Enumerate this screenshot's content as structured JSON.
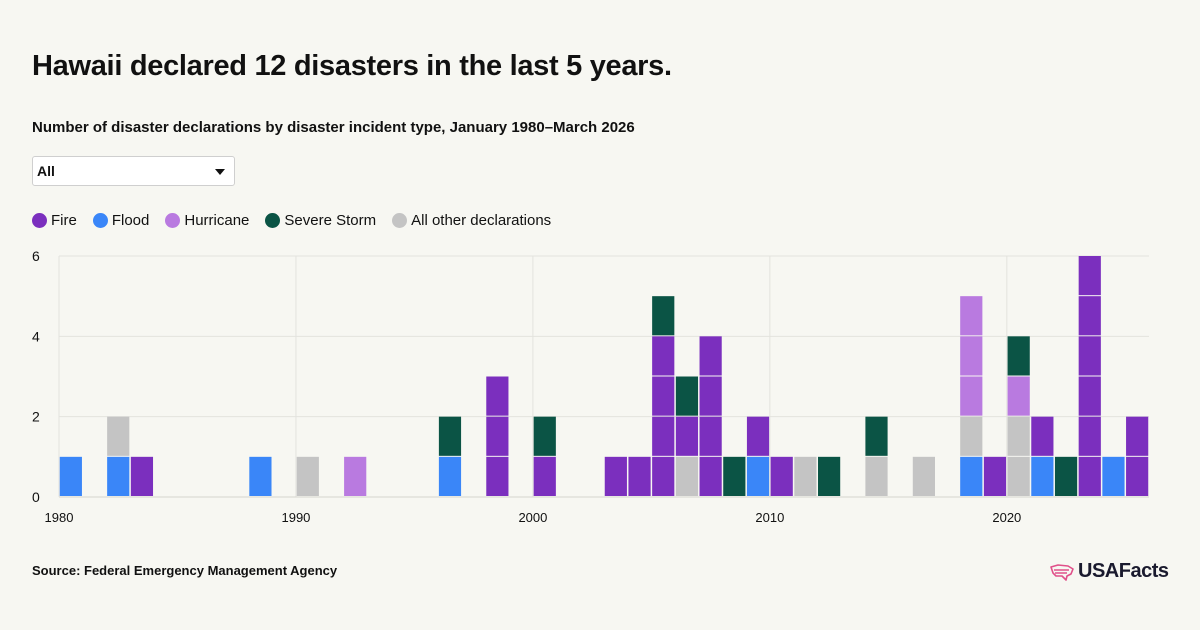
{
  "header": {
    "title": "Hawaii declared 12 disasters in the last 5 years.",
    "subtitle": "Number of disaster declarations by disaster incident type, January 1980–March 2026"
  },
  "filter": {
    "selected": "All"
  },
  "legend": {
    "items": [
      {
        "label": "Fire",
        "color": "#7b2fbe"
      },
      {
        "label": "Flood",
        "color": "#3a86f8"
      },
      {
        "label": "Hurricane",
        "color": "#b97ae0"
      },
      {
        "label": "Severe Storm",
        "color": "#0b5445"
      },
      {
        "label": "All other declarations",
        "color": "#c4c4c4"
      }
    ]
  },
  "footer": {
    "source": "Source: Federal Emergency Management Agency",
    "logo_text": "USAFacts",
    "logo_icon": "us-map-icon"
  },
  "chart_data": {
    "type": "bar",
    "stacked": true,
    "x_range": [
      1980,
      2025
    ],
    "x_ticks": [
      "1980",
      "1990",
      "2000",
      "2010",
      "2020"
    ],
    "ylim": [
      0,
      6
    ],
    "y_ticks": [
      "0",
      "2",
      "4",
      "6"
    ],
    "grid": true,
    "stack_order": [
      "Flood",
      "All other declarations",
      "Fire",
      "Hurricane",
      "Severe Storm"
    ],
    "colors": {
      "Fire": "#7b2fbe",
      "Flood": "#3a86f8",
      "Hurricane": "#b97ae0",
      "Severe Storm": "#0b5445",
      "All other declarations": "#c4c4c4"
    },
    "years": [
      {
        "year": 1980,
        "Flood": 1
      },
      {
        "year": 1982,
        "Flood": 1,
        "All other declarations": 1
      },
      {
        "year": 1983,
        "Fire": 1
      },
      {
        "year": 1988,
        "Flood": 1
      },
      {
        "year": 1990,
        "All other declarations": 1
      },
      {
        "year": 1992,
        "Hurricane": 1
      },
      {
        "year": 1996,
        "Flood": 1,
        "Severe Storm": 1
      },
      {
        "year": 1998,
        "Fire": 3
      },
      {
        "year": 2000,
        "Fire": 1,
        "Severe Storm": 1
      },
      {
        "year": 2003,
        "Fire": 1
      },
      {
        "year": 2004,
        "Fire": 1
      },
      {
        "year": 2005,
        "Fire": 4,
        "Severe Storm": 1
      },
      {
        "year": 2006,
        "All other declarations": 1,
        "Fire": 1,
        "Severe Storm": 1
      },
      {
        "year": 2007,
        "Fire": 4
      },
      {
        "year": 2008,
        "Severe Storm": 1
      },
      {
        "year": 2009,
        "Flood": 1,
        "Fire": 1
      },
      {
        "year": 2010,
        "Fire": 1
      },
      {
        "year": 2011,
        "All other declarations": 1
      },
      {
        "year": 2012,
        "Severe Storm": 1
      },
      {
        "year": 2014,
        "All other declarations": 1,
        "Severe Storm": 1
      },
      {
        "year": 2016,
        "All other declarations": 1
      },
      {
        "year": 2018,
        "Flood": 1,
        "All other declarations": 1,
        "Hurricane": 3
      },
      {
        "year": 2019,
        "Fire": 1
      },
      {
        "year": 2020,
        "All other declarations": 2,
        "Hurricane": 1,
        "Severe Storm": 1
      },
      {
        "year": 2021,
        "Flood": 1,
        "Fire": 1
      },
      {
        "year": 2022,
        "Severe Storm": 1
      },
      {
        "year": 2023,
        "Fire": 6
      },
      {
        "year": 2024,
        "Flood": 1
      },
      {
        "year": 2025,
        "Fire": 2
      }
    ]
  }
}
